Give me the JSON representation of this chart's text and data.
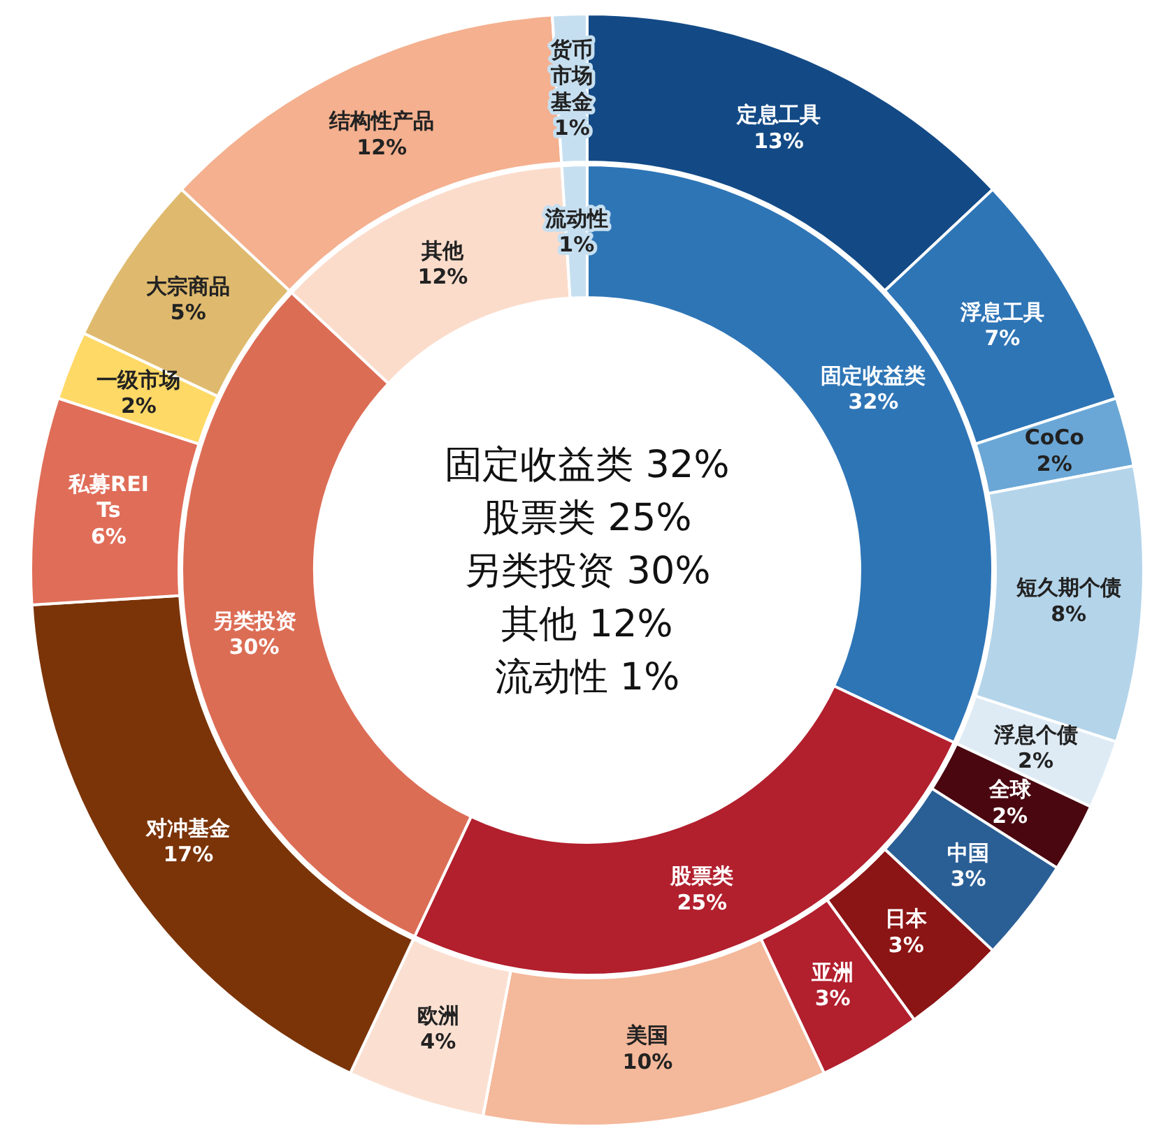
{
  "chart_data": [
    {
      "type": "donut",
      "categories": [
        "固定收益类",
        "股票类",
        "另类投资",
        "其他",
        "流动性"
      ],
      "values": [
        32,
        25,
        30,
        12,
        1
      ],
      "value_labels": [
        "32%",
        "25%",
        "30%",
        "12%",
        "1%"
      ],
      "colors": [
        "#2e75b6",
        "#b21f2d",
        "#dc6d55",
        "#fbdccb",
        "#c6dff0"
      ],
      "annotations": [
        "固定收益类 32%",
        "股票类 25%",
        "另类投资 30%",
        "其他 12%",
        "流动性 1%"
      ]
    },
    {
      "type": "donut",
      "categories": [
        "定息工具",
        "浮息工具",
        "CoCo",
        "短久期个债",
        "浮息个债",
        "全球",
        "中国",
        "日本",
        "亚洲",
        "美国",
        "欧洲",
        "对冲基金",
        "私募REITs",
        "一级市场",
        "大宗商品",
        "结构性产品",
        "货币市场基金"
      ],
      "values": [
        13,
        7,
        2,
        8,
        2,
        2,
        3,
        3,
        3,
        10,
        4,
        17,
        6,
        2,
        5,
        12,
        1
      ],
      "value_labels": [
        "13%",
        "7%",
        "2%",
        "8%",
        "2%",
        "2%",
        "3%",
        "3%",
        "3%",
        "10%",
        "4%",
        "17%",
        "6%",
        "2%",
        "5%",
        "12%",
        "1%"
      ],
      "colors": [
        "#134a86",
        "#2e75b6",
        "#6aa7d6",
        "#b4d4ea",
        "#deebf5",
        "#4a0710",
        "#2a5f96",
        "#8b1414",
        "#b21f2d",
        "#f4b89a",
        "#fbe0d2",
        "#7b3408",
        "#e06d58",
        "#ffd966",
        "#dfba6e",
        "#f4b08f",
        "#c6dff0"
      ]
    }
  ]
}
